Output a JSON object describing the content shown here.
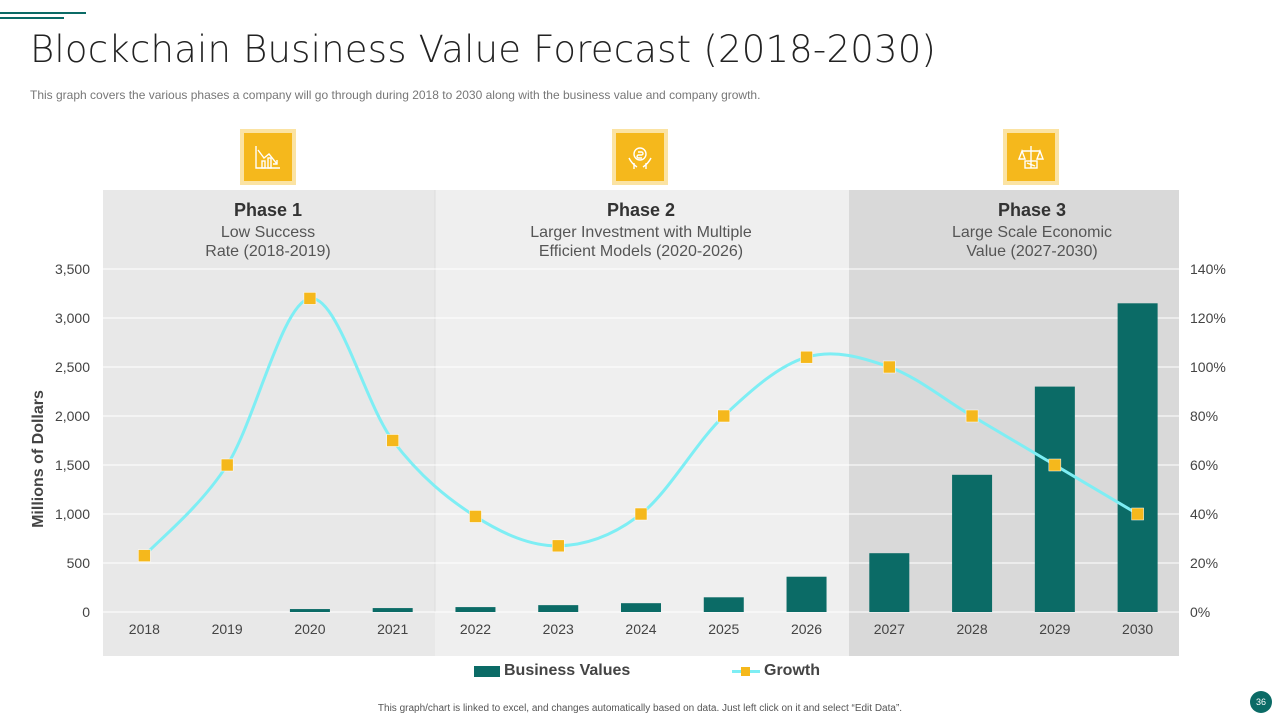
{
  "header": {
    "title": "Blockchain Business Value Forecast (2018-2030)",
    "subtitle": "This graph covers the various  phases a company will go through during 2018 to 2030 along with the business value and company growth."
  },
  "phases": [
    {
      "title": "Phase 1",
      "line1": "Low Success",
      "line2": "Rate (2018-2019)",
      "icon": "declining-chart-icon"
    },
    {
      "title": "Phase 2",
      "line1": "Larger Investment  with Multiple",
      "line2": "Efficient Models (2020-2026)",
      "icon": "investment-hands-icon"
    },
    {
      "title": "Phase 3",
      "line1": "Large Scale Economic",
      "line2": "Value (2027-2030)",
      "icon": "economic-scale-icon"
    }
  ],
  "chart_data": {
    "type": "bar",
    "categories": [
      "2018",
      "2019",
      "2020",
      "2021",
      "2022",
      "2023",
      "2024",
      "2025",
      "2026",
      "2027",
      "2028",
      "2029",
      "2030"
    ],
    "series": [
      {
        "name": "Business Values",
        "type": "bar",
        "axis": "left",
        "values": [
          0,
          0,
          30,
          40,
          50,
          70,
          90,
          150,
          360,
          600,
          1400,
          2300,
          3150
        ]
      },
      {
        "name": "Growth",
        "type": "line",
        "axis": "right",
        "values": [
          23,
          60,
          128,
          70,
          39,
          27,
          40,
          80,
          104,
          100,
          80,
          60,
          40
        ]
      }
    ],
    "ylabel": "Millions of Dollars",
    "ylim": [
      0,
      3500
    ],
    "yticks": [
      "0",
      "500",
      "1,000",
      "1,500",
      "2,000",
      "2,500",
      "3,000",
      "3,500"
    ],
    "y2lim": [
      0,
      140
    ],
    "y2ticks": [
      "0%",
      "20%",
      "40%",
      "60%",
      "80%",
      "100%",
      "120%",
      "140%"
    ],
    "grid": true,
    "legend": "bottom",
    "colors": {
      "bar": "#0b6b66",
      "line": "#7eeef4",
      "marker": "#f5b81c"
    }
  },
  "footer": {
    "note": "This graph/chart is linked to excel, and changes automatically based on data. Just left click on it and select “Edit Data”.",
    "page_number": "36"
  }
}
